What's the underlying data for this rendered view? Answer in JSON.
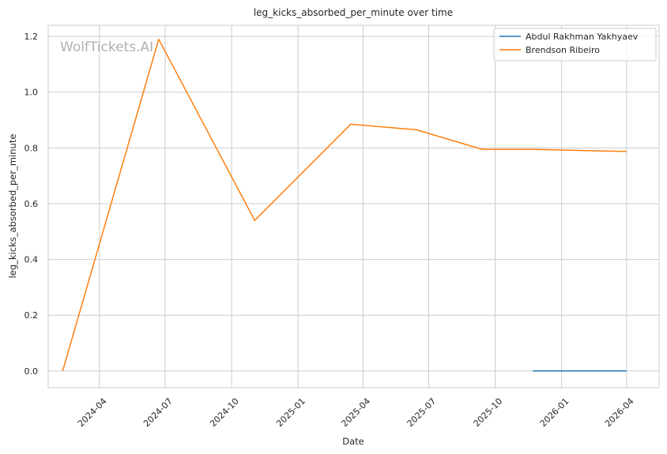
{
  "chart_data": {
    "type": "line",
    "title": "leg_kicks_absorbed_per_minute over time",
    "xlabel": "Date",
    "ylabel": "leg_kicks_absorbed_per_minute",
    "watermark": "WolfTickets.AI",
    "x_ticks": [
      "2024-04",
      "2024-07",
      "2024-10",
      "2025-01",
      "2025-04",
      "2025-07",
      "2025-10",
      "2026-01",
      "2026-04"
    ],
    "y_ticks": [
      "0.0",
      "0.2",
      "0.4",
      "0.6",
      "0.8",
      "1.0",
      "1.2"
    ],
    "xlim": [
      "2024-01-21",
      "2026-05-16"
    ],
    "ylim": [
      -0.06,
      1.24
    ],
    "grid": true,
    "legend_position": "top-right",
    "series": [
      {
        "name": "Abdul Rakhman Yakhyaev",
        "color": "#1f77b4",
        "points": [
          {
            "x": "2025-11-22",
            "y": 0.0
          },
          {
            "x": "2026-04-01",
            "y": 0.0
          }
        ]
      },
      {
        "name": "Brendson Ribeiro",
        "color": "#ff7f0e",
        "points": [
          {
            "x": "2024-02-10",
            "y": 0.0
          },
          {
            "x": "2024-06-22",
            "y": 1.19
          },
          {
            "x": "2024-11-02",
            "y": 0.54
          },
          {
            "x": "2025-03-15",
            "y": 0.885
          },
          {
            "x": "2025-06-14",
            "y": 0.865
          },
          {
            "x": "2025-09-13",
            "y": 0.795
          },
          {
            "x": "2025-11-22",
            "y": 0.795
          },
          {
            "x": "2026-04-01",
            "y": 0.787
          }
        ]
      }
    ]
  }
}
